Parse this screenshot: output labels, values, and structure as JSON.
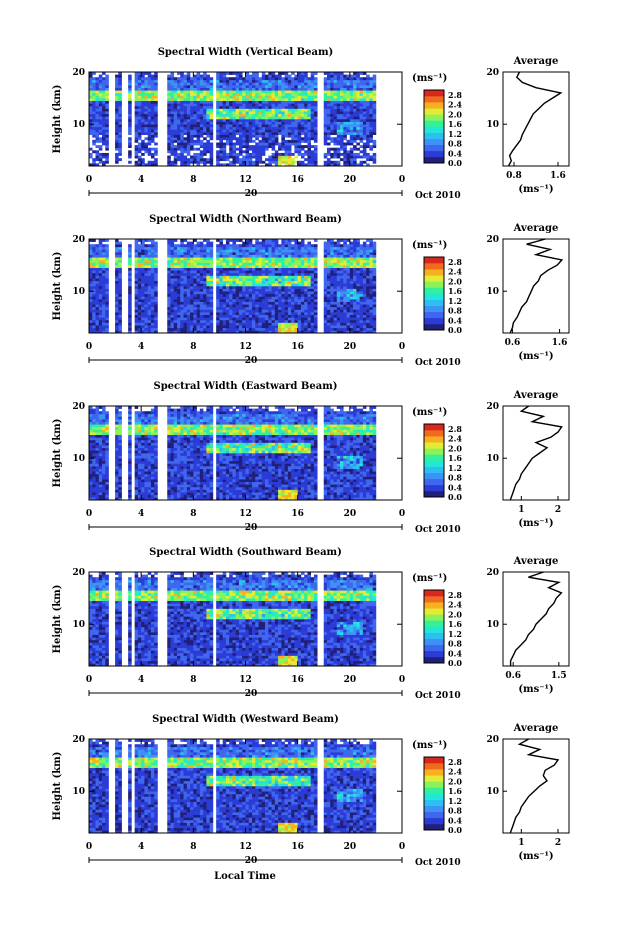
{
  "figure": {
    "xlabel": "Local Time",
    "date_label": "Oct 2010",
    "day_label": "20",
    "ylabel": "Height (km)",
    "colorbar_unit": "(ms⁻¹)",
    "profile_title": "Average",
    "profile_unit": "(ms⁻¹)",
    "colormap": [
      "#20207a",
      "#2b3bd6",
      "#3f66ee",
      "#3c92f5",
      "#2cc0f2",
      "#22e6d8",
      "#33f09a",
      "#8cf25a",
      "#e3ec34",
      "#f8b020",
      "#f26a1e",
      "#d8281e"
    ]
  },
  "chart_data": [
    {
      "type": "heatmap",
      "title": "Spectral Width (Vertical Beam)",
      "xlabel": "Local Time",
      "ylabel": "Height (km)",
      "x_ticks": [
        "0",
        "4",
        "8",
        "12",
        "16",
        "20",
        "0"
      ],
      "y_ticks": [
        "10",
        "20"
      ],
      "xlim_hours": [
        0,
        24
      ],
      "ylim_km": [
        2,
        20
      ],
      "colorbar_ticks": [
        "0.0",
        "0.4",
        "0.8",
        "1.2",
        "1.6",
        "2.0",
        "2.4",
        "2.8"
      ],
      "colorbar_range": [
        0.0,
        3.0
      ],
      "data_gaps_hours": [
        [
          1.6,
          2.0
        ],
        [
          2.6,
          3.1
        ],
        [
          3.3,
          3.5
        ],
        [
          5.3,
          6.0
        ],
        [
          9.4,
          9.7
        ],
        [
          17.6,
          18.0
        ],
        [
          22.1,
          24
        ]
      ],
      "profile": {
        "title": "Average",
        "xlabel": "(ms⁻¹)",
        "x_ticks": [
          "0.8",
          "1.6"
        ],
        "xlim": [
          0.6,
          1.8
        ],
        "height_km": [
          2,
          3,
          4,
          5,
          6,
          7,
          8,
          9,
          10,
          11,
          12,
          13,
          14,
          15,
          16,
          17,
          18,
          19,
          20
        ],
        "avg_width": [
          0.7,
          0.75,
          0.72,
          0.78,
          0.85,
          0.92,
          0.95,
          1.0,
          1.05,
          1.1,
          1.15,
          1.25,
          1.35,
          1.5,
          1.65,
          1.2,
          0.95,
          0.85,
          0.9
        ]
      }
    },
    {
      "type": "heatmap",
      "title": "Spectral Width (Northward Beam)",
      "xlabel": "Local Time",
      "ylabel": "Height (km)",
      "x_ticks": [
        "0",
        "4",
        "8",
        "12",
        "16",
        "20",
        "0"
      ],
      "y_ticks": [
        "10",
        "20"
      ],
      "xlim_hours": [
        0,
        24
      ],
      "ylim_km": [
        2,
        20
      ],
      "colorbar_ticks": [
        "0.0",
        "0.4",
        "0.8",
        "1.2",
        "1.6",
        "2.0",
        "2.4",
        "2.8"
      ],
      "colorbar_range": [
        0.0,
        3.0
      ],
      "data_gaps_hours": [
        [
          1.6,
          2.0
        ],
        [
          2.6,
          3.1
        ],
        [
          3.3,
          3.5
        ],
        [
          5.3,
          6.0
        ],
        [
          9.4,
          9.7
        ],
        [
          17.6,
          18.0
        ],
        [
          22.1,
          24
        ]
      ],
      "profile": {
        "title": "Average",
        "xlabel": "(ms⁻¹)",
        "x_ticks": [
          "0.6",
          "1.6"
        ],
        "xlim": [
          0.4,
          1.8
        ],
        "height_km": [
          2,
          3,
          4,
          5,
          6,
          7,
          8,
          9,
          10,
          11,
          12,
          13,
          14,
          15,
          16,
          17,
          18,
          19,
          20
        ],
        "avg_width": [
          0.55,
          0.6,
          0.62,
          0.7,
          0.75,
          0.8,
          0.9,
          0.95,
          1.0,
          1.05,
          1.15,
          1.2,
          1.35,
          1.55,
          1.65,
          1.1,
          1.4,
          0.9,
          1.3
        ]
      }
    },
    {
      "type": "heatmap",
      "title": "Spectral Width (Eastward Beam)",
      "xlabel": "Local Time",
      "ylabel": "Height (km)",
      "x_ticks": [
        "0",
        "4",
        "8",
        "12",
        "16",
        "20",
        "0"
      ],
      "y_ticks": [
        "10",
        "20"
      ],
      "xlim_hours": [
        0,
        24
      ],
      "ylim_km": [
        2,
        20
      ],
      "colorbar_ticks": [
        "0.0",
        "0.4",
        "0.8",
        "1.2",
        "1.6",
        "2.0",
        "2.4",
        "2.8"
      ],
      "colorbar_range": [
        0.0,
        3.0
      ],
      "data_gaps_hours": [
        [
          1.6,
          2.0
        ],
        [
          2.6,
          3.1
        ],
        [
          3.3,
          3.5
        ],
        [
          5.3,
          6.0
        ],
        [
          9.4,
          9.7
        ],
        [
          17.6,
          18.0
        ],
        [
          22.1,
          24
        ]
      ],
      "profile": {
        "title": "Average",
        "xlabel": "(ms⁻¹)",
        "x_ticks": [
          "1",
          "2"
        ],
        "xlim": [
          0.5,
          2.3
        ],
        "height_km": [
          2,
          3,
          4,
          5,
          6,
          7,
          8,
          9,
          10,
          11,
          12,
          13,
          14,
          15,
          16,
          17,
          18,
          19,
          20
        ],
        "avg_width": [
          0.7,
          0.75,
          0.8,
          0.85,
          0.95,
          1.0,
          1.1,
          1.2,
          1.3,
          1.5,
          1.7,
          1.4,
          1.8,
          2.0,
          2.1,
          1.3,
          1.6,
          1.0,
          1.2
        ]
      }
    },
    {
      "type": "heatmap",
      "title": "Spectral Width (Southward Beam)",
      "xlabel": "Local Time",
      "ylabel": "Height (km)",
      "x_ticks": [
        "0",
        "4",
        "8",
        "12",
        "16",
        "20",
        "0"
      ],
      "y_ticks": [
        "10",
        "20"
      ],
      "xlim_hours": [
        0,
        24
      ],
      "ylim_km": [
        2,
        20
      ],
      "colorbar_ticks": [
        "0.0",
        "0.4",
        "0.8",
        "1.2",
        "1.6",
        "2.0",
        "2.4",
        "2.8"
      ],
      "colorbar_range": [
        0.0,
        3.0
      ],
      "data_gaps_hours": [
        [
          1.6,
          2.0
        ],
        [
          2.6,
          3.1
        ],
        [
          3.3,
          3.5
        ],
        [
          5.3,
          6.0
        ],
        [
          9.4,
          9.7
        ],
        [
          17.6,
          18.0
        ],
        [
          22.1,
          24
        ]
      ],
      "profile": {
        "title": "Average",
        "xlabel": "(ms⁻¹)",
        "x_ticks": [
          "0.6",
          "1.5"
        ],
        "xlim": [
          0.4,
          1.7
        ],
        "height_km": [
          2,
          3,
          4,
          5,
          6,
          7,
          8,
          9,
          10,
          11,
          12,
          13,
          14,
          15,
          16,
          17,
          18,
          19,
          20
        ],
        "avg_width": [
          0.55,
          0.55,
          0.6,
          0.65,
          0.75,
          0.85,
          0.9,
          1.0,
          1.05,
          1.15,
          1.25,
          1.3,
          1.4,
          1.45,
          1.55,
          1.3,
          1.5,
          0.9,
          1.2
        ]
      }
    },
    {
      "type": "heatmap",
      "title": "Spectral Width (Westward Beam)",
      "xlabel": "Local Time",
      "ylabel": "Height (km)",
      "x_ticks": [
        "0",
        "4",
        "8",
        "12",
        "16",
        "20",
        "0"
      ],
      "y_ticks": [
        "10",
        "20"
      ],
      "xlim_hours": [
        0,
        24
      ],
      "ylim_km": [
        2,
        20
      ],
      "colorbar_ticks": [
        "0.0",
        "0.4",
        "0.8",
        "1.2",
        "1.6",
        "2.0",
        "2.4",
        "2.8"
      ],
      "colorbar_range": [
        0.0,
        3.0
      ],
      "data_gaps_hours": [
        [
          1.6,
          2.0
        ],
        [
          2.6,
          3.1
        ],
        [
          3.3,
          3.5
        ],
        [
          5.3,
          6.0
        ],
        [
          9.4,
          9.7
        ],
        [
          17.6,
          18.0
        ],
        [
          22.1,
          24
        ]
      ],
      "profile": {
        "title": "Average",
        "xlabel": "(ms⁻¹)",
        "x_ticks": [
          "1",
          "2"
        ],
        "xlim": [
          0.5,
          2.3
        ],
        "height_km": [
          2,
          3,
          4,
          5,
          6,
          7,
          8,
          9,
          10,
          11,
          12,
          13,
          14,
          15,
          16,
          17,
          18,
          19,
          20
        ],
        "avg_width": [
          0.7,
          0.75,
          0.8,
          0.85,
          0.95,
          1.0,
          1.1,
          1.2,
          1.35,
          1.5,
          1.7,
          1.6,
          1.65,
          1.9,
          2.0,
          1.2,
          1.5,
          0.95,
          1.2
        ]
      }
    }
  ]
}
